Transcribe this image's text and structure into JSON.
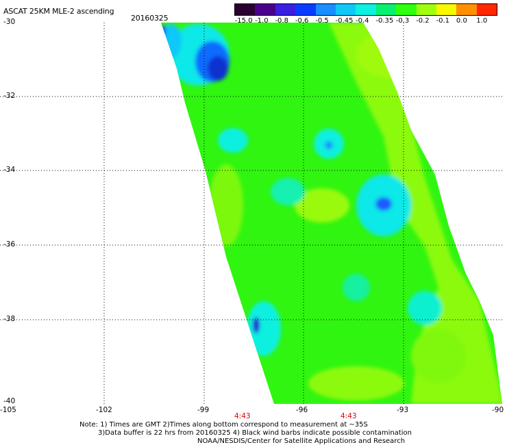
{
  "header": {
    "title": "ASCAT 25KM MLE-2 ascending",
    "date": "20160325"
  },
  "colorbar": {
    "labels": [
      "-15.0",
      "-1.0",
      "-0.8",
      "-0.6",
      "-0.5",
      "-0.45",
      "-0.4",
      "-0.35",
      "-0.3",
      "-0.2",
      "-0.1",
      "0.0",
      "1.0"
    ],
    "colors": [
      "#2a0030",
      "#4a008a",
      "#3a1fe0",
      "#0a3cff",
      "#1a8dff",
      "#10c8f8",
      "#10f0e0",
      "#08f070",
      "#30ff10",
      "#a0ff10",
      "#f8f800",
      "#ff9000",
      "#ff2800"
    ]
  },
  "map": {
    "lat_labels": [
      "-30",
      "-32",
      "-34",
      "-36",
      "-38",
      "-40"
    ],
    "lon_labels": [
      "-105",
      "-102",
      "-99",
      "-96",
      "-93",
      "-90"
    ],
    "time_labels": [
      "4:43",
      "4:43"
    ]
  },
  "notes": {
    "line1": "Note: 1) Times are GMT 2)Times along bottom correspond to measurement at ~35S",
    "line2": "3)Data buffer is 22 hrs from 20160325 4) Black wind barbs indicate possible contamination",
    "line3": "NOAA/NESDIS/Center for Satellite Applications and Research"
  }
}
